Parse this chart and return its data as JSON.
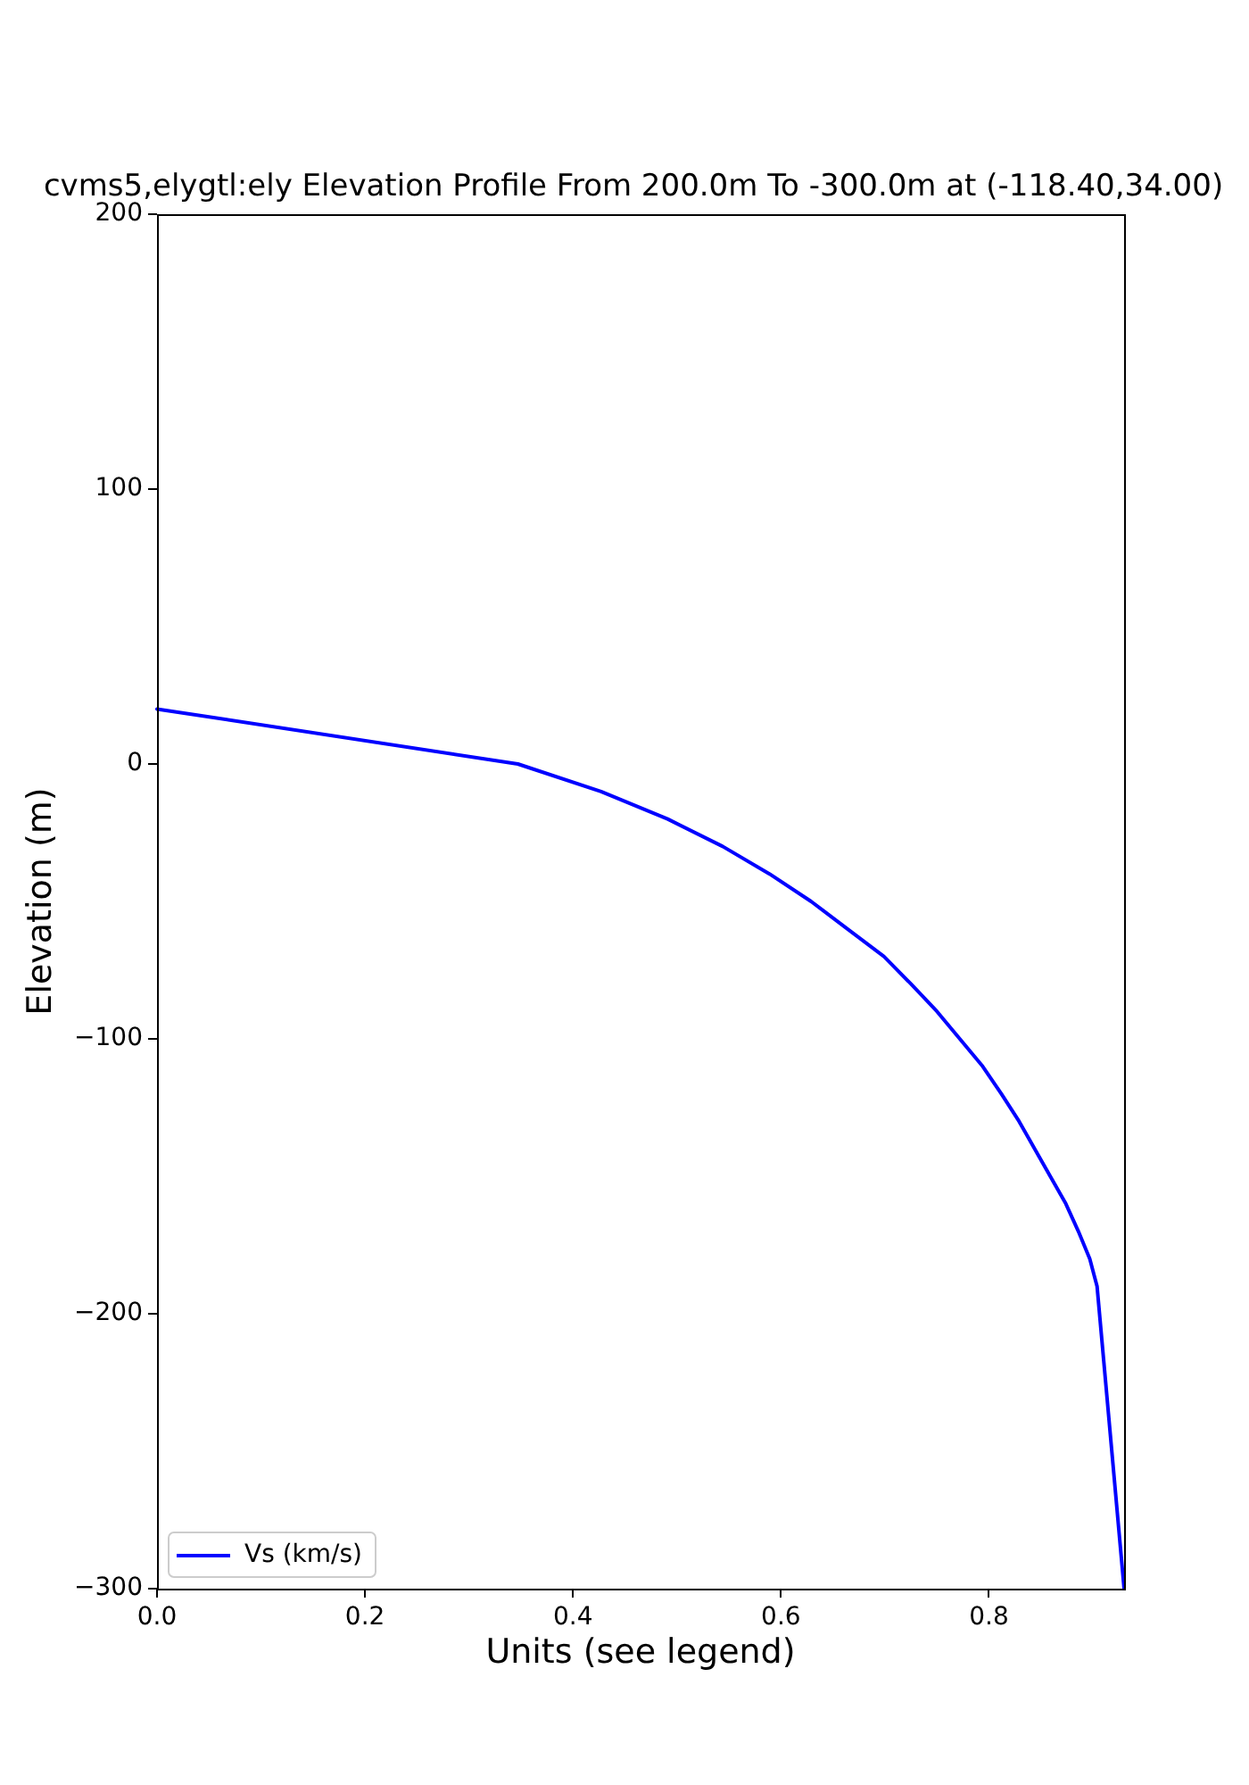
{
  "chart_data": {
    "type": "line",
    "title": "cvms5,elygtl:ely Elevation Profile From 200.0m To -300.0m at (-118.40,34.00)",
    "xlabel": "Units (see legend)",
    "ylabel": "Elevation (m)",
    "series": [
      {
        "name": "Vs (km/s)",
        "color": "#0000ff",
        "x": [
          0,
          0.347,
          0.427,
          0.491,
          0.544,
          0.589,
          0.629,
          0.664,
          0.699,
          0.725,
          0.75,
          0.772,
          0.794,
          0.812,
          0.829,
          0.844,
          0.859,
          0.874,
          0.886,
          0.897,
          0.904,
          0.93
        ],
        "values": [
          20,
          0,
          -10,
          -20,
          -30,
          -40,
          -50,
          -60,
          -70,
          -80,
          -90,
          -100,
          -110,
          -120,
          -130,
          -140,
          -150,
          -160,
          -170,
          -180,
          -190,
          -300
        ]
      }
    ],
    "xlim": [
      0,
      0.93
    ],
    "xticks": [
      {
        "value": 0,
        "label": "0.0"
      },
      0.2,
      0.4,
      0.6,
      0.8
    ],
    "ylim": [
      -300,
      200
    ],
    "yticks": [
      {
        "value": -300,
        "label": "−300"
      },
      {
        "value": -200,
        "label": "−200"
      },
      {
        "value": -100,
        "label": "−100"
      },
      0,
      100,
      200
    ],
    "legend": "bottom left"
  }
}
